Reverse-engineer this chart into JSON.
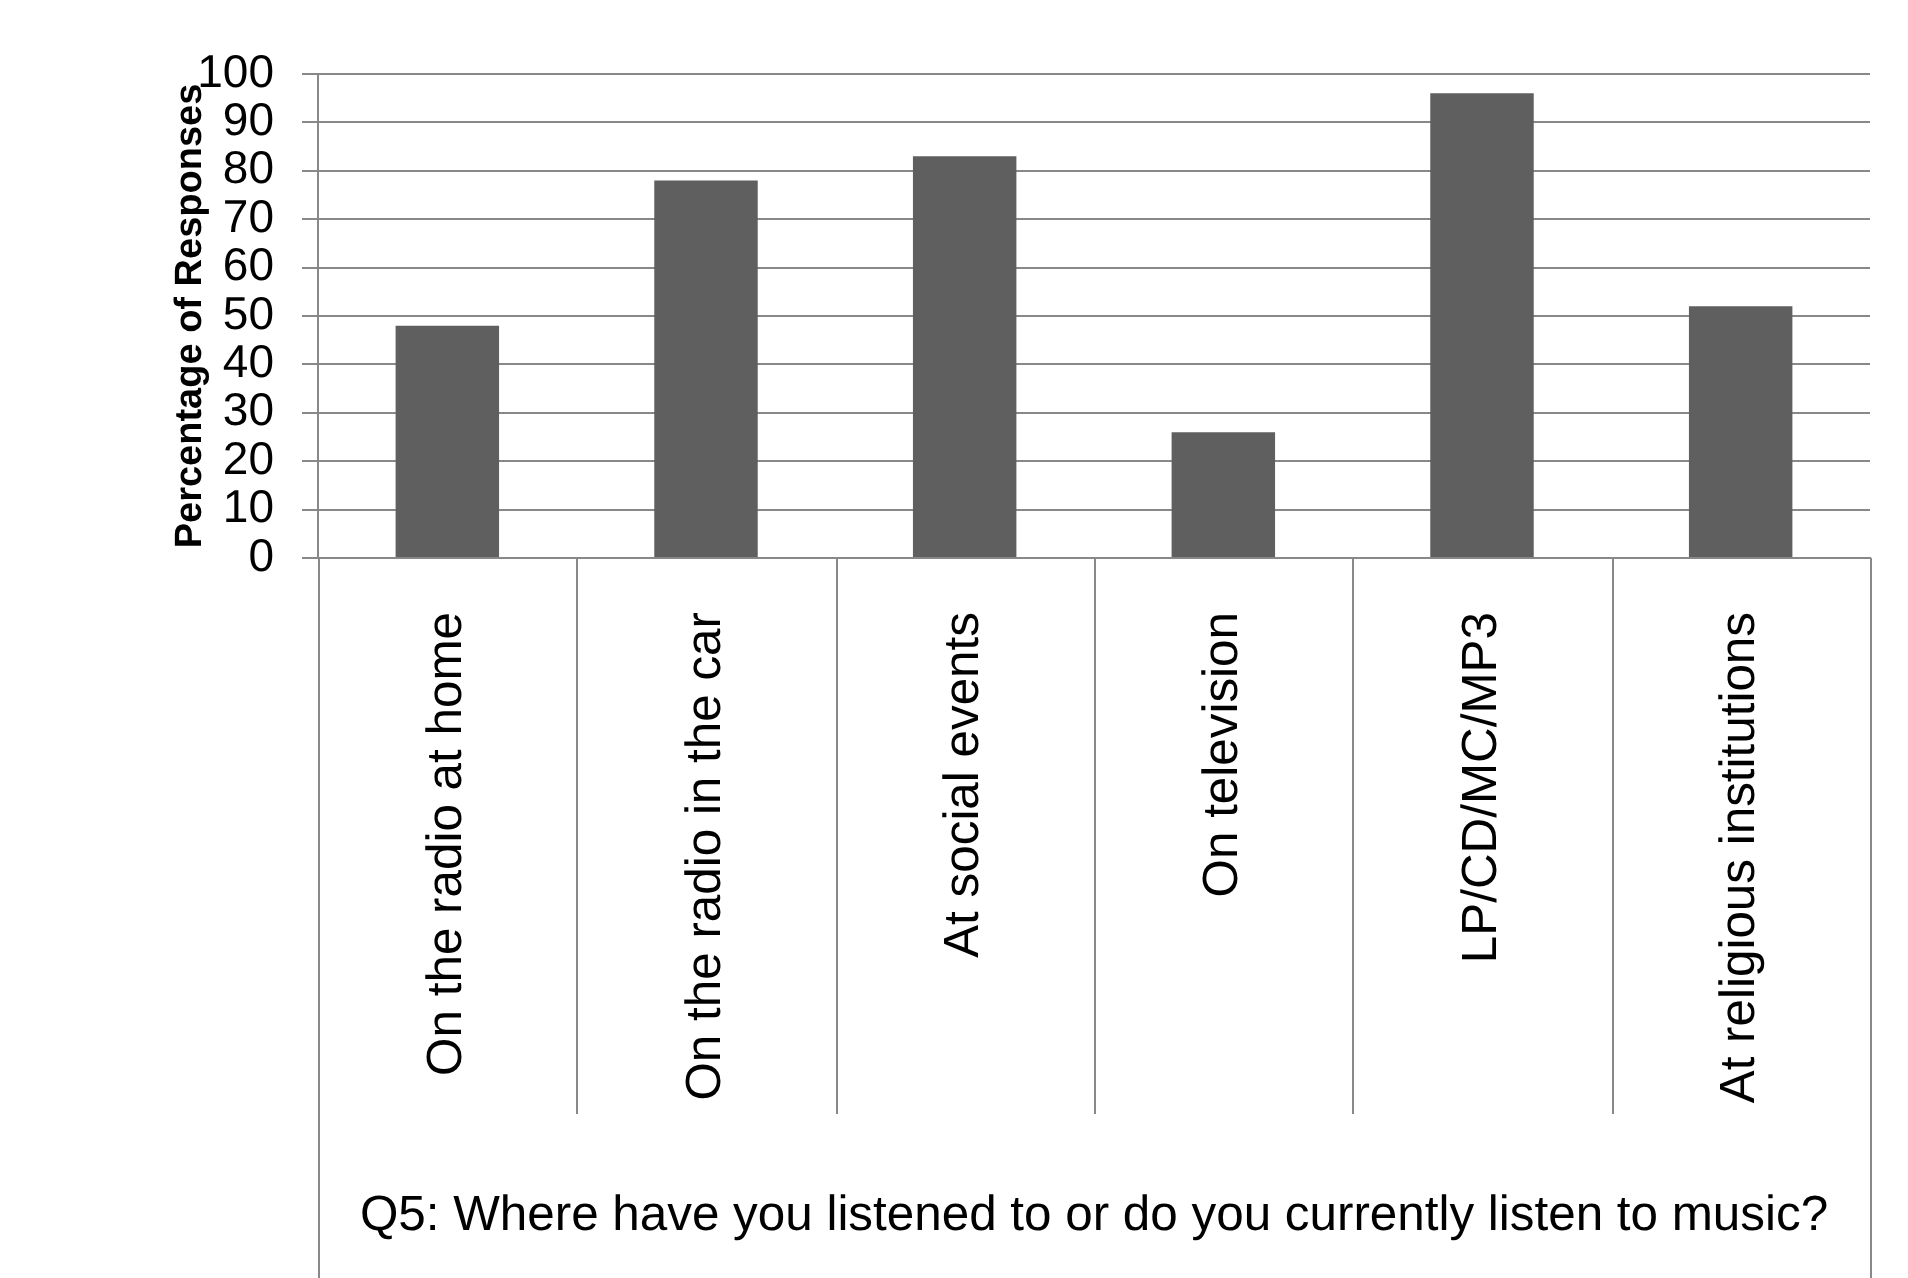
{
  "chart_data": {
    "type": "bar",
    "xlabel": "Q5: Where have you listened to or do you currently listen to music?",
    "ylabel": "Percentage of Responses",
    "categories": [
      "On the radio at home",
      "On the radio in the car",
      "At social events",
      "On television",
      "LP/CD/MC/MP3",
      "At religious institutions"
    ],
    "values": [
      48,
      78,
      83,
      26,
      96,
      52
    ],
    "color": "#5f5f5f",
    "ylim": [
      0,
      100
    ],
    "yticks": [
      0,
      10,
      20,
      30,
      40,
      50,
      60,
      70,
      80,
      90,
      100
    ],
    "grid": "y"
  }
}
